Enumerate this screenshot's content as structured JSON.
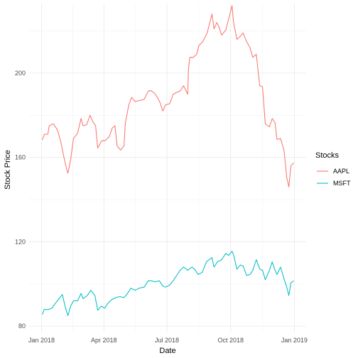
{
  "chart_data": {
    "type": "line",
    "title": "",
    "xlabel": "Date",
    "ylabel": "Stock Price",
    "grid": true,
    "legend": {
      "title": "Stocks",
      "position": "right"
    },
    "x_ticks": [
      "Jan 2018",
      "Apr 2018",
      "Jul 2018",
      "Oct 2018",
      "Jan 2019"
    ],
    "x_tick_dates": [
      "2018-01-01",
      "2018-04-01",
      "2018-07-01",
      "2018-10-01",
      "2019-01-01"
    ],
    "xlim": [
      "2017-12-14",
      "2019-01-18"
    ],
    "y_ticks": [
      80,
      120,
      160,
      200
    ],
    "ylim": [
      77,
      233
    ],
    "series": [
      {
        "name": "AAPL",
        "color": "#F8766D",
        "points": [
          [
            "2018-01-02",
            168.3
          ],
          [
            "2018-01-05",
            171.0
          ],
          [
            "2018-01-10",
            171.0
          ],
          [
            "2018-01-12",
            175.0
          ],
          [
            "2018-01-18",
            176.0
          ],
          [
            "2018-01-24",
            173.0
          ],
          [
            "2018-01-29",
            167.0
          ],
          [
            "2018-02-02",
            160.5
          ],
          [
            "2018-02-05",
            156.0
          ],
          [
            "2018-02-08",
            152.5
          ],
          [
            "2018-02-12",
            159.0
          ],
          [
            "2018-02-16",
            169.0
          ],
          [
            "2018-02-22",
            171.5
          ],
          [
            "2018-02-27",
            178.5
          ],
          [
            "2018-03-02",
            175.0
          ],
          [
            "2018-03-07",
            175.5
          ],
          [
            "2018-03-12",
            180.0
          ],
          [
            "2018-03-16",
            177.0
          ],
          [
            "2018-03-20",
            175.0
          ],
          [
            "2018-03-23",
            164.5
          ],
          [
            "2018-03-29",
            168.0
          ],
          [
            "2018-04-03",
            168.0
          ],
          [
            "2018-04-09",
            170.0
          ],
          [
            "2018-04-13",
            174.0
          ],
          [
            "2018-04-17",
            175.0
          ],
          [
            "2018-04-20",
            165.5
          ],
          [
            "2018-04-25",
            163.5
          ],
          [
            "2018-04-30",
            165.5
          ],
          [
            "2018-05-02",
            176.5
          ],
          [
            "2018-05-07",
            185.0
          ],
          [
            "2018-05-11",
            188.5
          ],
          [
            "2018-05-16",
            186.5
          ],
          [
            "2018-05-22",
            187.0
          ],
          [
            "2018-05-29",
            187.5
          ],
          [
            "2018-06-04",
            191.5
          ],
          [
            "2018-06-08",
            191.7
          ],
          [
            "2018-06-13",
            190.5
          ],
          [
            "2018-06-18",
            188.0
          ],
          [
            "2018-06-21",
            186.0
          ],
          [
            "2018-06-25",
            182.0
          ],
          [
            "2018-06-29",
            185.0
          ],
          [
            "2018-07-05",
            185.5
          ],
          [
            "2018-07-10",
            190.0
          ],
          [
            "2018-07-16",
            191.0
          ],
          [
            "2018-07-20",
            191.5
          ],
          [
            "2018-07-25",
            194.0
          ],
          [
            "2018-07-31",
            190.0
          ],
          [
            "2018-08-01",
            201.5
          ],
          [
            "2018-08-03",
            207.5
          ],
          [
            "2018-08-08",
            207.5
          ],
          [
            "2018-08-13",
            209.0
          ],
          [
            "2018-08-16",
            213.0
          ],
          [
            "2018-08-22",
            215.0
          ],
          [
            "2018-08-28",
            219.0
          ],
          [
            "2018-09-04",
            228.0
          ],
          [
            "2018-09-07",
            221.0
          ],
          [
            "2018-09-11",
            224.0
          ],
          [
            "2018-09-14",
            222.0
          ],
          [
            "2018-09-18",
            218.0
          ],
          [
            "2018-09-24",
            220.5
          ],
          [
            "2018-09-28",
            225.5
          ],
          [
            "2018-10-03",
            232.0
          ],
          [
            "2018-10-05",
            224.5
          ],
          [
            "2018-10-10",
            216.0
          ],
          [
            "2018-10-15",
            217.5
          ],
          [
            "2018-10-19",
            219.0
          ],
          [
            "2018-10-24",
            215.0
          ],
          [
            "2018-10-29",
            212.0
          ],
          [
            "2018-11-02",
            207.5
          ],
          [
            "2018-11-07",
            209.0
          ],
          [
            "2018-11-12",
            194.0
          ],
          [
            "2018-11-16",
            193.5
          ],
          [
            "2018-11-20",
            176.0
          ],
          [
            "2018-11-26",
            174.5
          ],
          [
            "2018-11-30",
            178.5
          ],
          [
            "2018-12-04",
            176.5
          ],
          [
            "2018-12-07",
            168.5
          ],
          [
            "2018-12-12",
            169.0
          ],
          [
            "2018-12-17",
            163.5
          ],
          [
            "2018-12-21",
            150.5
          ],
          [
            "2018-12-24",
            146.0
          ],
          [
            "2018-12-27",
            156.0
          ],
          [
            "2018-12-31",
            157.5
          ]
        ]
      },
      {
        "name": "MSFT",
        "color": "#00BFC4",
        "points": [
          [
            "2018-01-02",
            85.5
          ],
          [
            "2018-01-05",
            88.0
          ],
          [
            "2018-01-10",
            87.8
          ],
          [
            "2018-01-16",
            88.5
          ],
          [
            "2018-01-19",
            90.0
          ],
          [
            "2018-01-25",
            92.5
          ],
          [
            "2018-01-31",
            95.0
          ],
          [
            "2018-02-05",
            88.0
          ],
          [
            "2018-02-08",
            85.0
          ],
          [
            "2018-02-12",
            89.5
          ],
          [
            "2018-02-16",
            92.0
          ],
          [
            "2018-02-22",
            92.0
          ],
          [
            "2018-02-27",
            95.5
          ],
          [
            "2018-03-02",
            93.0
          ],
          [
            "2018-03-08",
            94.5
          ],
          [
            "2018-03-13",
            97.0
          ],
          [
            "2018-03-19",
            94.5
          ],
          [
            "2018-03-23",
            87.5
          ],
          [
            "2018-03-28",
            89.5
          ],
          [
            "2018-04-02",
            88.5
          ],
          [
            "2018-04-06",
            90.5
          ],
          [
            "2018-04-12",
            92.5
          ],
          [
            "2018-04-18",
            93.5
          ],
          [
            "2018-04-24",
            94.0
          ],
          [
            "2018-04-30",
            93.5
          ],
          [
            "2018-05-04",
            95.0
          ],
          [
            "2018-05-10",
            98.0
          ],
          [
            "2018-05-16",
            97.0
          ],
          [
            "2018-05-22",
            98.0
          ],
          [
            "2018-05-29",
            98.5
          ],
          [
            "2018-06-04",
            101.5
          ],
          [
            "2018-06-08",
            101.5
          ],
          [
            "2018-06-14",
            101.0
          ],
          [
            "2018-06-20",
            101.5
          ],
          [
            "2018-06-25",
            99.0
          ],
          [
            "2018-06-29",
            98.5
          ],
          [
            "2018-07-05",
            99.5
          ],
          [
            "2018-07-10",
            101.5
          ],
          [
            "2018-07-16",
            104.5
          ],
          [
            "2018-07-20",
            106.5
          ],
          [
            "2018-07-25",
            108.0
          ],
          [
            "2018-07-31",
            106.5
          ],
          [
            "2018-08-06",
            108.0
          ],
          [
            "2018-08-10",
            107.0
          ],
          [
            "2018-08-15",
            104.5
          ],
          [
            "2018-08-21",
            105.5
          ],
          [
            "2018-08-27",
            110.5
          ],
          [
            "2018-09-04",
            112.5
          ],
          [
            "2018-09-07",
            108.0
          ],
          [
            "2018-09-12",
            110.5
          ],
          [
            "2018-09-18",
            111.5
          ],
          [
            "2018-09-24",
            114.5
          ],
          [
            "2018-09-28",
            113.5
          ],
          [
            "2018-10-03",
            115.5
          ],
          [
            "2018-10-05",
            114.0
          ],
          [
            "2018-10-10",
            107.0
          ],
          [
            "2018-10-15",
            109.0
          ],
          [
            "2018-10-19",
            108.5
          ],
          [
            "2018-10-24",
            104.0
          ],
          [
            "2018-10-29",
            104.5
          ],
          [
            "2018-11-02",
            106.5
          ],
          [
            "2018-11-07",
            111.5
          ],
          [
            "2018-11-12",
            107.0
          ],
          [
            "2018-11-16",
            106.5
          ],
          [
            "2018-11-20",
            102.0
          ],
          [
            "2018-11-26",
            106.5
          ],
          [
            "2018-11-30",
            110.5
          ],
          [
            "2018-12-04",
            106.5
          ],
          [
            "2018-12-07",
            104.5
          ],
          [
            "2018-12-12",
            108.0
          ],
          [
            "2018-12-17",
            102.5
          ],
          [
            "2018-12-21",
            98.5
          ],
          [
            "2018-12-24",
            94.5
          ],
          [
            "2018-12-27",
            100.5
          ],
          [
            "2018-12-31",
            101.5
          ]
        ]
      }
    ]
  }
}
